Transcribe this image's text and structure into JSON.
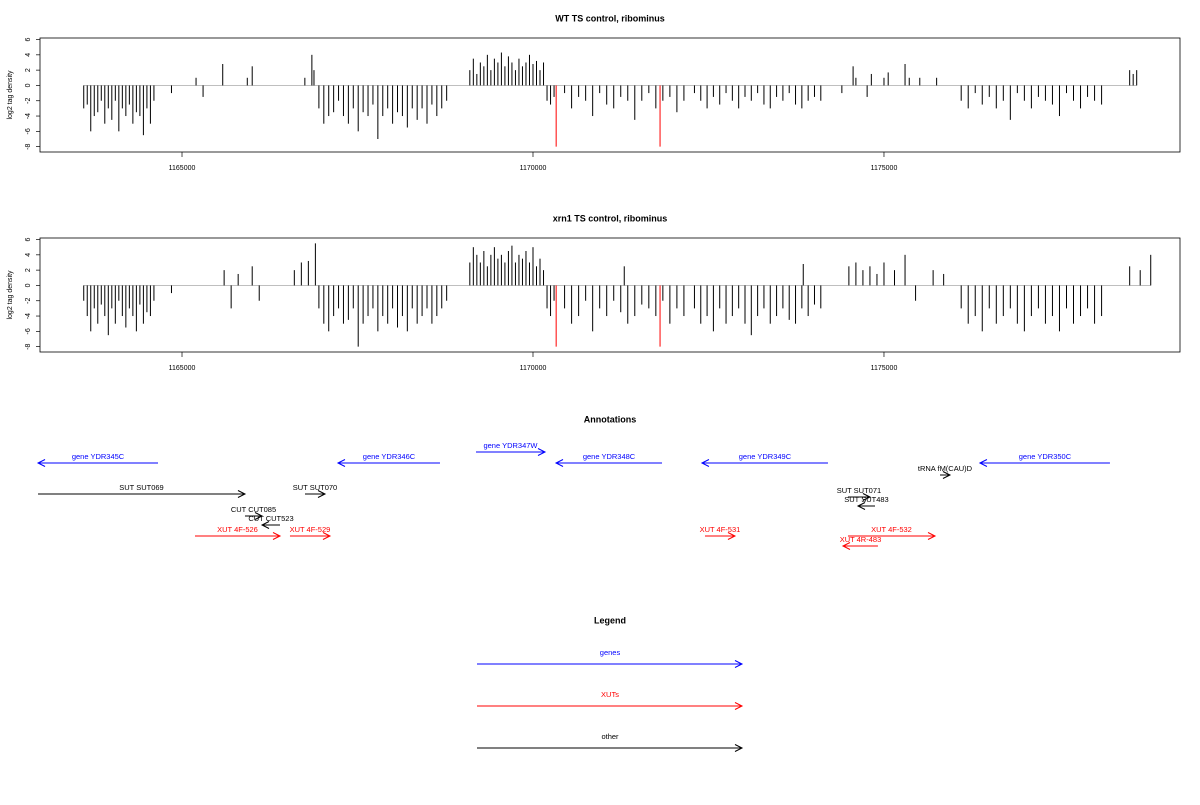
{
  "chart_data": [
    {
      "type": "bar",
      "title": "WT TS control, ribominus",
      "y_label": "log2 tag density",
      "xlim": [
        1162977,
        1179217
      ],
      "ylim": [
        -8.7,
        6.2
      ],
      "xticks": [
        1165000,
        1170000,
        1175000
      ],
      "yticks": [
        -8,
        -6,
        -4,
        -2,
        0,
        2,
        4,
        6
      ],
      "series": [
        {
          "color": "#000000",
          "x": [
            1163600,
            1163650,
            1163700,
            1163750,
            1163800,
            1163850,
            1163900,
            1163950,
            1164000,
            1164050,
            1164100,
            1164150,
            1164200,
            1164250,
            1164300,
            1164350,
            1164400,
            1164450,
            1164500,
            1164550,
            1164600,
            1164850,
            1165200,
            1165300,
            1165580,
            1165930,
            1166000,
            1166750,
            1166850,
            1166880,
            1166950,
            1167020,
            1167090,
            1167160,
            1167230,
            1167300,
            1167370,
            1167440,
            1167510,
            1167580,
            1167650,
            1167720,
            1167790,
            1167860,
            1167930,
            1168000,
            1168070,
            1168140,
            1168210,
            1168280,
            1168350,
            1168420,
            1168490,
            1168560,
            1168630,
            1168700,
            1168770,
            1169100,
            1169150,
            1169200,
            1169250,
            1169300,
            1169350,
            1169400,
            1169450,
            1169500,
            1169550,
            1169600,
            1169650,
            1169700,
            1169750,
            1169800,
            1169850,
            1169900,
            1169950,
            1170000,
            1170050,
            1170100,
            1170150,
            1170200,
            1170250,
            1170300,
            1170450,
            1170550,
            1170650,
            1170750,
            1170850,
            1170950,
            1171050,
            1171150,
            1171250,
            1171350,
            1171450,
            1171550,
            1171650,
            1171750,
            1171850,
            1171950,
            1172050,
            1172150,
            1172300,
            1172390,
            1172480,
            1172570,
            1172660,
            1172750,
            1172840,
            1172930,
            1173020,
            1173110,
            1173200,
            1173290,
            1173380,
            1173470,
            1173560,
            1173650,
            1173740,
            1173830,
            1173920,
            1174010,
            1174100,
            1174400,
            1174560,
            1174600,
            1174760,
            1174820,
            1175000,
            1175060,
            1175300,
            1175360,
            1175510,
            1175750,
            1176100,
            1176200,
            1176300,
            1176400,
            1176500,
            1176600,
            1176700,
            1176800,
            1176900,
            1177000,
            1177100,
            1177200,
            1177300,
            1177400,
            1177500,
            1177600,
            1177700,
            1177800,
            1177900,
            1178000,
            1178100,
            1178500,
            1178550,
            1178600
          ],
          "values": [
            -3,
            -2.5,
            -6,
            -4,
            -3.5,
            -2,
            -5,
            -3,
            -4.5,
            -2,
            -6,
            -3,
            -4,
            -2.5,
            -5,
            -3.5,
            -4,
            -6.5,
            -3,
            -5,
            -2,
            -1,
            1,
            -1.5,
            2.8,
            1,
            2.5,
            1,
            4,
            2,
            -3,
            -5,
            -4,
            -3.5,
            -2,
            -4,
            -5,
            -3,
            -6,
            -3.5,
            -4,
            -2.5,
            -7,
            -4,
            -3,
            -5,
            -3.5,
            -4,
            -5.5,
            -3,
            -4.5,
            -3,
            -5,
            -2.5,
            -4,
            -3,
            -2,
            2,
            3.5,
            1.5,
            3,
            2.5,
            4,
            2,
            3.5,
            3,
            4.3,
            2.5,
            3.8,
            3,
            2,
            3.5,
            2.5,
            3,
            4,
            2.8,
            3.2,
            2,
            3,
            -2,
            -2.5,
            -1.5,
            -1,
            -3,
            -1.5,
            -2,
            -4,
            -1,
            -2.5,
            -3,
            -1.5,
            -2,
            -4.5,
            -2,
            -1,
            -3,
            -2,
            -1.5,
            -3.5,
            -2,
            -1,
            -2,
            -3,
            -1.5,
            -2.5,
            -1,
            -2,
            -3,
            -1.5,
            -2,
            -1,
            -2.5,
            -3,
            -1.5,
            -2,
            -1,
            -2.5,
            -3,
            -2,
            -1.5,
            -2,
            -1,
            2.5,
            1,
            -1.5,
            1.5,
            1,
            1.7,
            2.8,
            1,
            1,
            1,
            -2,
            -3,
            -1,
            -2.5,
            -1.5,
            -3,
            -2,
            -4.5,
            -1,
            -2,
            -3,
            -1.5,
            -2,
            -2.5,
            -4,
            -1,
            -2,
            -3,
            -1.5,
            -2,
            -2.5,
            2,
            1.5,
            2
          ]
        },
        {
          "color": "#ff0000",
          "x": [
            1170330,
            1171810
          ],
          "values": [
            -8,
            -8
          ]
        }
      ]
    },
    {
      "type": "bar",
      "title": "xrn1 TS control, ribominus",
      "y_label": "log2 tag density",
      "xlim": [
        1162977,
        1179217
      ],
      "ylim": [
        -8.7,
        6.2
      ],
      "xticks": [
        1165000,
        1170000,
        1175000
      ],
      "yticks": [
        -8,
        -6,
        -4,
        -2,
        0,
        2,
        4,
        6
      ],
      "series": [
        {
          "color": "#000000",
          "x": [
            1163600,
            1163650,
            1163700,
            1163750,
            1163800,
            1163850,
            1163900,
            1163950,
            1164000,
            1164050,
            1164100,
            1164150,
            1164200,
            1164250,
            1164300,
            1164350,
            1164400,
            1164450,
            1164500,
            1164550,
            1164600,
            1164850,
            1165600,
            1165700,
            1165800,
            1166000,
            1166100,
            1166600,
            1166700,
            1166800,
            1166900,
            1166950,
            1167020,
            1167090,
            1167160,
            1167230,
            1167300,
            1167370,
            1167440,
            1167510,
            1167580,
            1167650,
            1167720,
            1167790,
            1167860,
            1167930,
            1168000,
            1168070,
            1168140,
            1168210,
            1168280,
            1168350,
            1168420,
            1168490,
            1168560,
            1168630,
            1168700,
            1168770,
            1169100,
            1169150,
            1169200,
            1169250,
            1169300,
            1169350,
            1169400,
            1169450,
            1169500,
            1169550,
            1169600,
            1169650,
            1169700,
            1169750,
            1169800,
            1169850,
            1169900,
            1169950,
            1170000,
            1170050,
            1170100,
            1170150,
            1170200,
            1170250,
            1170300,
            1170450,
            1170550,
            1170650,
            1170750,
            1170850,
            1170950,
            1171050,
            1171150,
            1171250,
            1171350,
            1171450,
            1171550,
            1171650,
            1171750,
            1171850,
            1171950,
            1172050,
            1172150,
            1171300,
            1172300,
            1172390,
            1172480,
            1172570,
            1172660,
            1172750,
            1172840,
            1172930,
            1173020,
            1173110,
            1173200,
            1173290,
            1173380,
            1173470,
            1173560,
            1173650,
            1173740,
            1173830,
            1173920,
            1174010,
            1174100,
            1173850,
            1174500,
            1174600,
            1174700,
            1174800,
            1174900,
            1175000,
            1175150,
            1175300,
            1175450,
            1175700,
            1175850,
            1176100,
            1176200,
            1176300,
            1176400,
            1176500,
            1176600,
            1176700,
            1176800,
            1176900,
            1177000,
            1177100,
            1177200,
            1177300,
            1177400,
            1177500,
            1177600,
            1177700,
            1177800,
            1177900,
            1178000,
            1178100,
            1178500,
            1178650,
            1178800
          ],
          "values": [
            -2,
            -4,
            -6,
            -3,
            -5,
            -2.5,
            -4,
            -6.5,
            -3,
            -5,
            -2,
            -4,
            -5.5,
            -3,
            -4,
            -6,
            -2.5,
            -5,
            -3.5,
            -4,
            -2,
            -1,
            2,
            -3,
            1.5,
            2.5,
            -2,
            2,
            3,
            3.2,
            5.5,
            -3,
            -5,
            -6,
            -4,
            -3,
            -5,
            -4.5,
            -3,
            -8,
            -5,
            -4,
            -3,
            -6,
            -4,
            -5,
            -3,
            -5.5,
            -4,
            -6,
            -3,
            -5,
            -4,
            -3,
            -5,
            -4,
            -3,
            -2,
            3,
            5,
            4,
            3,
            4.5,
            2.5,
            4,
            5,
            3.5,
            4,
            3,
            4.5,
            5.2,
            3,
            4,
            3.5,
            4.5,
            3,
            5,
            2.5,
            3.5,
            2,
            -3,
            -4,
            -2,
            -3,
            -5,
            -4,
            -2,
            -6,
            -3,
            -4,
            -2,
            -3.5,
            -5,
            -4,
            -2.5,
            -3,
            -4,
            -2,
            -5,
            -3,
            -4,
            2.5,
            -3,
            -5,
            -4,
            -6,
            -3,
            -5,
            -4,
            -3,
            -5,
            -6.5,
            -4,
            -3,
            -5,
            -4,
            -3,
            -4.5,
            -5,
            -3,
            -4,
            -2.5,
            -3,
            2.8,
            2.5,
            3,
            2,
            2.5,
            1.5,
            3,
            2,
            4,
            -2,
            2,
            1.5,
            -3,
            -5,
            -4,
            -6,
            -3,
            -5,
            -4,
            -3,
            -5,
            -6,
            -4,
            -3,
            -5,
            -4,
            -6,
            -3,
            -5,
            -4,
            -3,
            -5,
            -4,
            2.5,
            2,
            4
          ]
        },
        {
          "color": "#ff0000",
          "x": [
            1170330,
            1171810
          ],
          "values": [
            -8,
            -8
          ]
        }
      ]
    }
  ],
  "annotations": {
    "title": "Annotations",
    "features": [
      {
        "label": "gene YDR345C",
        "start": 1162949,
        "end": 1164658,
        "strand": "-",
        "color": "#0000ff"
      },
      {
        "label": "gene YDR346C",
        "start": 1167222,
        "end": 1168675,
        "strand": "-",
        "color": "#0000ff"
      },
      {
        "label": "gene YDR347W",
        "start": 1169188,
        "end": 1170171,
        "strand": "+",
        "color": "#0000ff"
      },
      {
        "label": "gene YDR348C",
        "start": 1170328,
        "end": 1171838,
        "strand": "-",
        "color": "#0000ff"
      },
      {
        "label": "gene YDR349C",
        "start": 1172407,
        "end": 1174202,
        "strand": "-",
        "color": "#0000ff"
      },
      {
        "label": "tRNA fM(CAU)D",
        "start": 1175798,
        "end": 1175940,
        "strand": "+",
        "color": "#000000"
      },
      {
        "label": "gene YDR350C",
        "start": 1176367,
        "end": 1178219,
        "strand": "-",
        "color": "#0000ff"
      },
      {
        "label": "SUT SUT069",
        "start": 1162949,
        "end": 1165897,
        "strand": "+",
        "color": "#000000"
      },
      {
        "label": "SUT SUT070",
        "start": 1166752,
        "end": 1167037,
        "strand": "+",
        "color": "#000000"
      },
      {
        "label": "CUT CUT085",
        "start": 1165897,
        "end": 1166140,
        "strand": "+",
        "color": "#000000"
      },
      {
        "label": "CUT CUT523",
        "start": 1166140,
        "end": 1166396,
        "strand": "-",
        "color": "#000000"
      },
      {
        "label": "XUT 4F-526",
        "start": 1165185,
        "end": 1166396,
        "strand": "+",
        "color": "#ff0000"
      },
      {
        "label": "XUT 4F-529",
        "start": 1166538,
        "end": 1167108,
        "strand": "+",
        "color": "#ff0000"
      },
      {
        "label": "XUT 4F-531",
        "start": 1172450,
        "end": 1172877,
        "strand": "+",
        "color": "#ff0000"
      },
      {
        "label": "SUT SUT071",
        "start": 1174487,
        "end": 1174800,
        "strand": "+",
        "color": "#000000"
      },
      {
        "label": "SUT SUT483",
        "start": 1174630,
        "end": 1174872,
        "strand": "-",
        "color": "#000000"
      },
      {
        "label": "XUT 4F-532",
        "start": 1174487,
        "end": 1175727,
        "strand": "+",
        "color": "#ff0000"
      },
      {
        "label": "XUT 4R-483",
        "start": 1174416,
        "end": 1174914,
        "strand": "-",
        "color": "#ff0000"
      }
    ]
  },
  "legend": {
    "title": "Legend",
    "items": [
      {
        "label": "genes",
        "color": "#0000ff"
      },
      {
        "label": "XUTs",
        "color": "#ff0000"
      },
      {
        "label": "other",
        "color": "#000000"
      }
    ]
  }
}
